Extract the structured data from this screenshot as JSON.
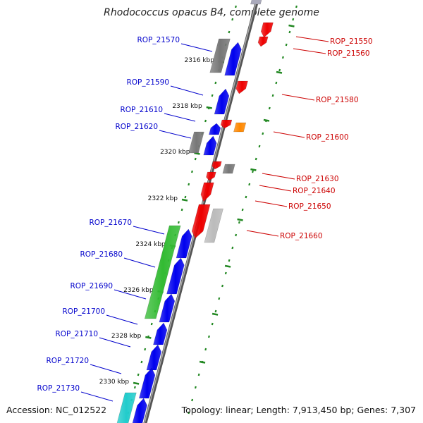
{
  "title": "Rhodococcus opacus B4, complete genome",
  "accession": "Accession: NC_012522",
  "summary": "Topology: linear; Length: 7,913,450 bp; Genes: 7,307",
  "tick_labels": [
    "2316 kbp",
    "2318 kbp",
    "2320 kbp",
    "2322 kbp",
    "2324 kbp",
    "2326 kbp",
    "2328 kbp",
    "2330 kbp"
  ],
  "colors": {
    "forward_gene": "#0000ee",
    "reverse_gene": "#ee0000",
    "other_gene": "#777777",
    "green_gene": "#33bb33",
    "orange_gene": "#ff8800",
    "cyan_gene": "#22cccc",
    "left_label": "#0000cc",
    "right_label": "#cc0000",
    "dotted_track": "#228822"
  },
  "left_labels": [
    "ROP_21570",
    "ROP_21590",
    "ROP_21610",
    "ROP_21620",
    "ROP_21670",
    "ROP_21680",
    "ROP_21690",
    "ROP_21700",
    "ROP_21710",
    "ROP_21720",
    "ROP_21730"
  ],
  "right_labels": [
    "ROP_21550",
    "ROP_21560",
    "ROP_21580",
    "ROP_21600",
    "ROP_21630",
    "ROP_21640",
    "ROP_21650",
    "ROP_21660"
  ]
}
